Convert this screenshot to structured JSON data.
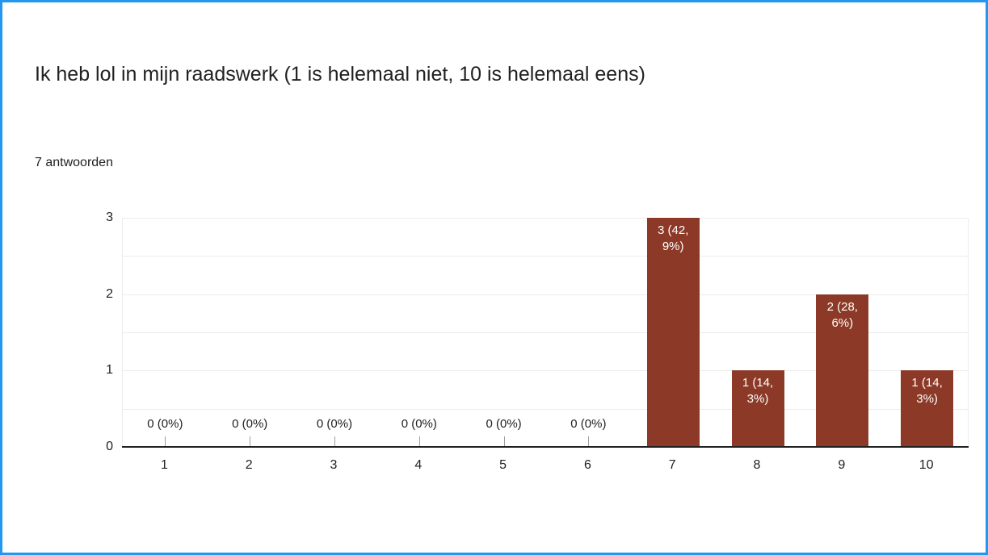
{
  "colors": {
    "page_border": "#2196F3",
    "axis": "#212121",
    "gridline": "#ECECEC",
    "zero_tick": "#9E9E9E",
    "text": "#212121"
  },
  "header": {
    "title": "Ik heb lol in mijn raadswerk (1 is helemaal niet, 10 is helemaal eens)",
    "responses_label": "7 antwoorden"
  },
  "chart_data": {
    "type": "bar",
    "title": "Ik heb lol in mijn raadswerk (1 is helemaal niet, 10 is helemaal eens)",
    "subtitle": "7 antwoorden",
    "categories": [
      "1",
      "2",
      "3",
      "4",
      "5",
      "6",
      "7",
      "8",
      "9",
      "10"
    ],
    "values": [
      0,
      0,
      0,
      0,
      0,
      0,
      3,
      1,
      2,
      1
    ],
    "value_labels": [
      "0 (0%)",
      "0 (0%)",
      "0 (0%)",
      "0 (0%)",
      "0 (0%)",
      "0 (0%)",
      "3 (42, 9%)",
      "1 (14, 3%)",
      "2 (28, 6%)",
      "1 (14, 3%)"
    ],
    "percentages": [
      0,
      0,
      0,
      0,
      0,
      0,
      42.9,
      14.3,
      28.6,
      14.3
    ],
    "xlabel": "",
    "ylabel": "",
    "y_ticks": [
      0,
      1,
      2,
      3
    ],
    "ylim": [
      0,
      3
    ],
    "gridline_step": 0.5,
    "grid": true,
    "legend": "none",
    "bar_color": "#8C3A27",
    "bar_label_color": "#FFFFFF",
    "zero_label_color": "#212121"
  }
}
